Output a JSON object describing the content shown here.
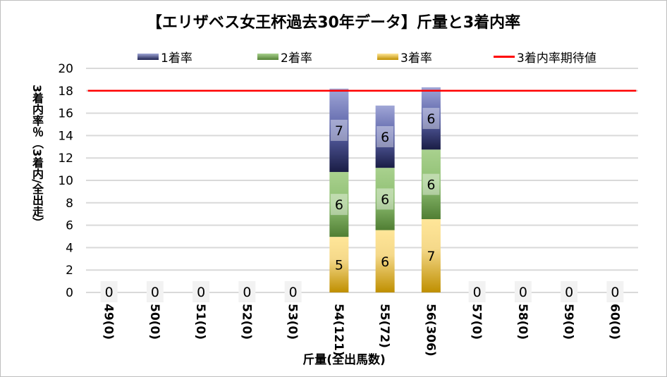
{
  "chart_data": {
    "type": "bar",
    "stacked": true,
    "title": "【エリザベス女王杯過去30年データ】斤量と3着内率",
    "xlabel": "斤量(全出馬数)",
    "ylabel": "3着内率％（3着内/全出走）",
    "ylim": [
      0,
      20
    ],
    "yticks": [
      0,
      2,
      4,
      6,
      8,
      10,
      12,
      14,
      16,
      18,
      20
    ],
    "grid": true,
    "legend_position": "top",
    "categories": [
      "49(0)",
      "50(0)",
      "51(0)",
      "52(0)",
      "53(0)",
      "54(121)",
      "55(72)",
      "56(306)",
      "57(0)",
      "58(0)",
      "59(0)",
      "60(0)"
    ],
    "series": [
      {
        "name": "3着率",
        "color": "#c8961a",
        "values": [
          0,
          0,
          0,
          0,
          0,
          4.96,
          5.56,
          6.54,
          0,
          0,
          0,
          0
        ],
        "labels": [
          "0",
          "0",
          "0",
          "0",
          "0",
          "5",
          "6",
          "7",
          "0",
          "0",
          "0",
          "0"
        ]
      },
      {
        "name": "2着率",
        "color": "#548235",
        "values": [
          0,
          0,
          0,
          0,
          0,
          5.79,
          5.56,
          6.21,
          0,
          0,
          0,
          0
        ],
        "labels": [
          "",
          "",
          "",
          "",
          "",
          "6",
          "6",
          "6",
          "",
          "",
          "",
          ""
        ]
      },
      {
        "name": "1着率",
        "color": "#2f3572",
        "values": [
          0,
          0,
          0,
          0,
          0,
          7.44,
          5.56,
          5.56,
          0,
          0,
          0,
          0
        ],
        "labels": [
          "",
          "",
          "",
          "",
          "",
          "7",
          "6",
          "6",
          "",
          "",
          "",
          ""
        ]
      }
    ],
    "reference_line": {
      "name": "3着内率期待値",
      "value": 18.0,
      "color": "#ff0000"
    }
  }
}
